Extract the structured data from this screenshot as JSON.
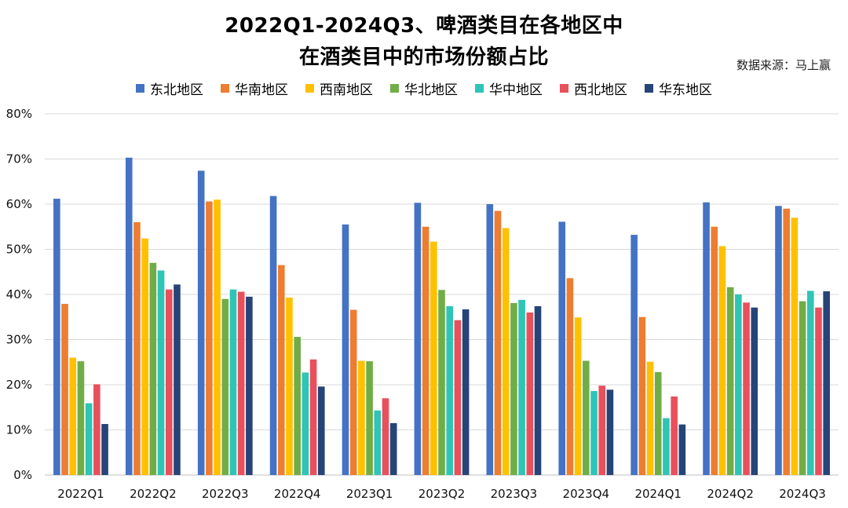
{
  "chart_data": {
    "type": "bar",
    "title_line1": "2022Q1-2024Q3、啤酒类目在各地区中",
    "title_line2": "在酒类目中的市场份额占比",
    "source": "数据来源：马上赢",
    "ylim": [
      0,
      80
    ],
    "yticks": [
      "0%",
      "10%",
      "20%",
      "30%",
      "40%",
      "50%",
      "60%",
      "70%",
      "80%"
    ],
    "grid": true,
    "legend_position": "top",
    "categories": [
      "2022Q1",
      "2022Q2",
      "2022Q3",
      "2022Q4",
      "2023Q1",
      "2023Q2",
      "2023Q3",
      "2023Q4",
      "2024Q1",
      "2024Q2",
      "2024Q3"
    ],
    "series": [
      {
        "name": "东北地区",
        "color": "#4472C4",
        "values": [
          61.2,
          70.3,
          67.4,
          61.8,
          55.5,
          60.3,
          60.0,
          56.1,
          53.2,
          60.4,
          59.6
        ]
      },
      {
        "name": "华南地区",
        "color": "#ED7D31",
        "values": [
          37.9,
          56.0,
          60.6,
          46.5,
          36.6,
          55.0,
          58.5,
          43.6,
          35.0,
          55.0,
          59.0
        ]
      },
      {
        "name": "西南地区",
        "color": "#FFC000",
        "values": [
          26.0,
          52.4,
          61.0,
          39.3,
          25.3,
          51.7,
          54.7,
          34.9,
          25.1,
          50.7,
          57.0
        ]
      },
      {
        "name": "华北地区",
        "color": "#70AD47",
        "values": [
          25.2,
          47.0,
          39.0,
          30.6,
          25.2,
          41.0,
          38.1,
          25.3,
          22.8,
          41.6,
          38.5
        ]
      },
      {
        "name": "华中地区",
        "color": "#2EC4B6",
        "values": [
          15.9,
          45.3,
          41.1,
          22.7,
          14.3,
          37.4,
          38.8,
          18.6,
          12.6,
          40.0,
          40.8
        ]
      },
      {
        "name": "西北地区",
        "color": "#E8505B",
        "values": [
          20.1,
          41.1,
          40.6,
          25.6,
          17.0,
          34.3,
          36.0,
          19.8,
          17.4,
          38.2,
          37.1
        ]
      },
      {
        "name": "华东地区",
        "color": "#264478",
        "values": [
          11.3,
          42.2,
          39.5,
          19.6,
          11.5,
          36.7,
          37.4,
          18.9,
          11.2,
          37.1,
          40.7
        ]
      }
    ]
  }
}
